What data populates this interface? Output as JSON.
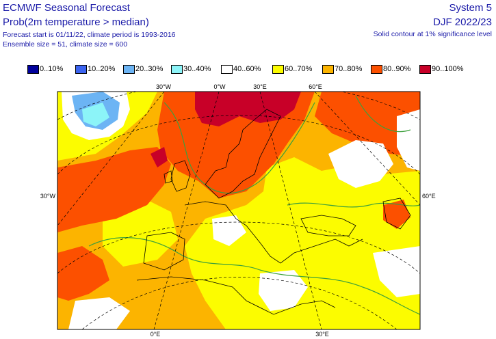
{
  "header": {
    "title": "ECMWF Seasonal Forecast",
    "subtitle": "Prob(2m temperature > median)",
    "forecast_info": "Forecast start is 01/11/22, climate period is 1993-2016",
    "ensemble_info": "Ensemble size = 51, climate size = 600",
    "system": "System 5",
    "season": "DJF 2022/23",
    "significance_note": "Solid contour at 1% significance level"
  },
  "legend": [
    {
      "label": "0..10%",
      "color": "#00009c"
    },
    {
      "label": "10..20%",
      "color": "#3c64f0"
    },
    {
      "label": "20..30%",
      "color": "#6cb4f4"
    },
    {
      "label": "30..40%",
      "color": "#8cf4f8"
    },
    {
      "label": "40..60%",
      "color": "#ffffff"
    },
    {
      "label": "60..70%",
      "color": "#fcfc00"
    },
    {
      "label": "70..80%",
      "color": "#fcb400"
    },
    {
      "label": "80..90%",
      "color": "#fc5000"
    },
    {
      "label": "90..100%",
      "color": "#c80028"
    }
  ],
  "map_labels": {
    "top": [
      "30°W",
      "0°W",
      "30°E",
      "60°E"
    ],
    "left": "30°W",
    "right": "60°E",
    "bottom": [
      "0°E",
      "30°E"
    ]
  }
}
